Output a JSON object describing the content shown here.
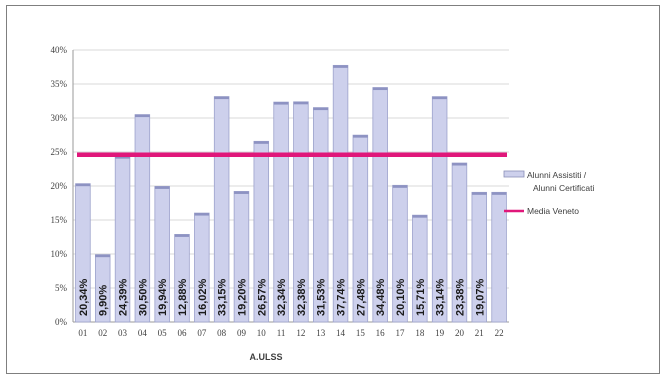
{
  "chart_data": {
    "type": "bar",
    "xlabel": "A.ULSS",
    "ylabel": "",
    "ylim": [
      0,
      40
    ],
    "y_ticks": [
      "0%",
      "5%",
      "10%",
      "15%",
      "20%",
      "25%",
      "30%",
      "35%",
      "40%"
    ],
    "grid": true,
    "legend_position": "right",
    "categories": [
      "01",
      "02",
      "03",
      "04",
      "05",
      "06",
      "07",
      "08",
      "09",
      "10",
      "11",
      "12",
      "13",
      "14",
      "15",
      "16",
      "17",
      "18",
      "19",
      "20",
      "21",
      "22"
    ],
    "series": [
      {
        "name": "Alunni Assistiti / Alunni Certificati",
        "type": "bar",
        "color": "#cdd0ec",
        "values": [
          20.34,
          9.9,
          24.39,
          30.5,
          19.94,
          12.88,
          16.02,
          33.15,
          19.2,
          26.57,
          32.34,
          32.38,
          31.53,
          37.74,
          27.48,
          34.48,
          20.1,
          15.71,
          33.14,
          23.38,
          19.07,
          19.07
        ],
        "labels": [
          "20,34%",
          "9,90%",
          "24,39%",
          "30,50%",
          "19,94%",
          "12,88%",
          "16,02%",
          "33,15%",
          "19,20%",
          "26,57%",
          "32,34%",
          "32,38%",
          "31,53%",
          "37,74%",
          "27,48%",
          "34,48%",
          "20,10%",
          "15,71%",
          "33,14%",
          "23,38%",
          "19,07%",
          ""
        ]
      },
      {
        "name": "Media Veneto",
        "type": "line",
        "color": "#e0177a",
        "value": 24.6
      }
    ]
  }
}
